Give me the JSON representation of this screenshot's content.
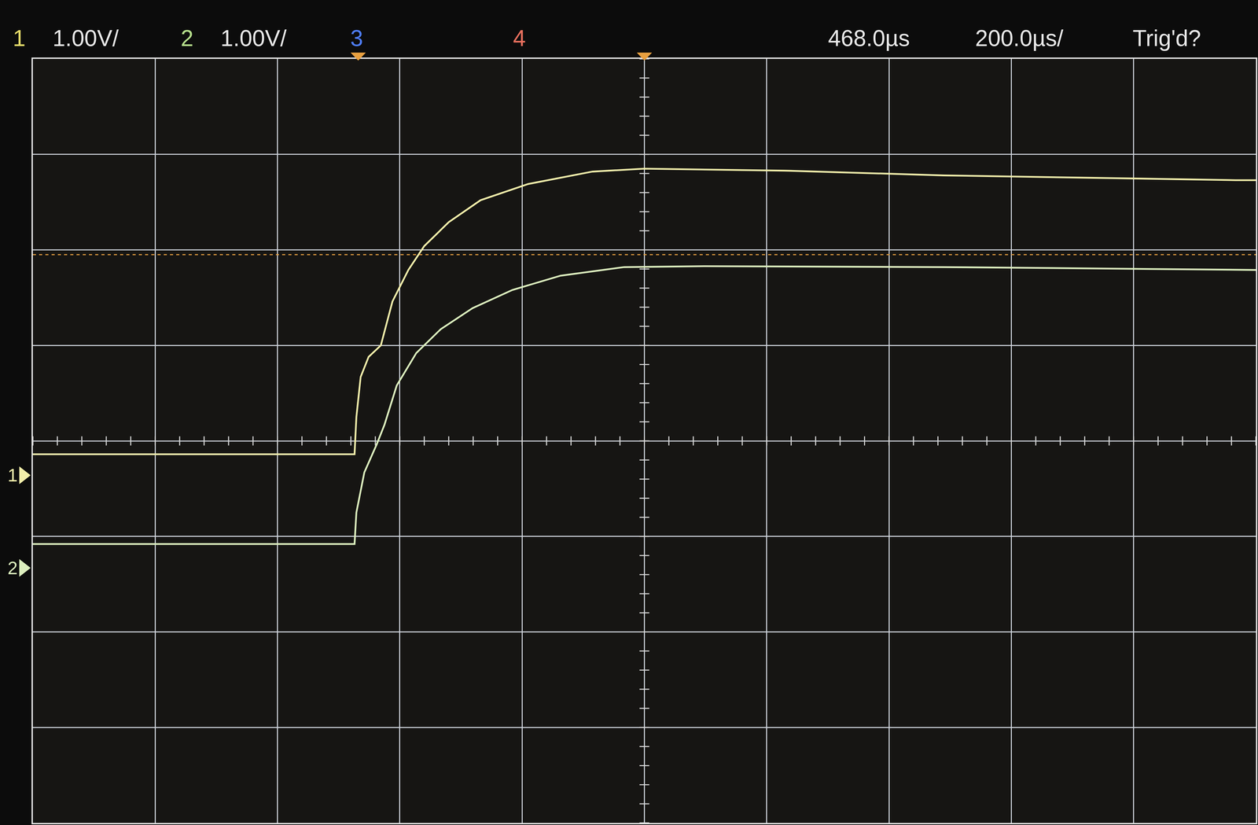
{
  "chart_data": {
    "type": "line",
    "header": [
      {
        "text": "1",
        "color": "#e6dc6a"
      },
      {
        "text": "1.00V/",
        "color": "#e8e8e8"
      },
      {
        "text": "2",
        "color": "#b6e08c"
      },
      {
        "text": "1.00V/",
        "color": "#e8e8e8"
      },
      {
        "text": "3",
        "color": "#4f7fff"
      },
      {
        "text": "4",
        "color": "#e8705e"
      },
      {
        "text": "468.0µs",
        "color": "#e8e8e8"
      },
      {
        "text": "200.0µs/",
        "color": "#e8e8e8"
      },
      {
        "text": "Trig'd?",
        "color": "#e8e8e8"
      }
    ],
    "xlim": [
      -532,
      1468
    ],
    "xticks": [
      -532,
      -332,
      -132,
      68,
      268,
      468,
      668,
      868,
      1068,
      1268,
      1468
    ],
    "ylim": [
      -4,
      4
    ],
    "yticks": [
      -4,
      -3,
      -2,
      -1,
      0,
      1,
      2,
      3,
      4
    ],
    "grid": true,
    "tick_labels": false,
    "trigger": {
      "time": 0,
      "level": 1.95,
      "color": "#e8a040"
    },
    "series": [
      {
        "name": "1",
        "color": "#f2eeaa",
        "ground": -0.36,
        "x": [
          -532,
          -6,
          -3,
          4,
          17,
          37,
          56,
          82,
          108,
          148,
          200,
          278,
          383,
          468,
          697,
          958,
          1435,
          1468
        ],
        "values": [
          -0.14,
          -0.14,
          0.25,
          0.67,
          0.88,
          1.0,
          1.46,
          1.79,
          2.04,
          2.29,
          2.52,
          2.69,
          2.82,
          2.85,
          2.83,
          2.78,
          2.73,
          2.73
        ]
      },
      {
        "name": "2",
        "color": "#dcefbe",
        "ground": -1.33,
        "x": [
          -532,
          -6,
          -3,
          10,
          30,
          43,
          63,
          95,
          135,
          187,
          252,
          331,
          435,
          566,
          958,
          1435,
          1468
        ],
        "values": [
          -1.08,
          -1.08,
          -0.75,
          -0.33,
          -0.04,
          0.17,
          0.58,
          0.92,
          1.17,
          1.39,
          1.58,
          1.73,
          1.82,
          1.83,
          1.82,
          1.79,
          1.79
        ]
      }
    ]
  }
}
